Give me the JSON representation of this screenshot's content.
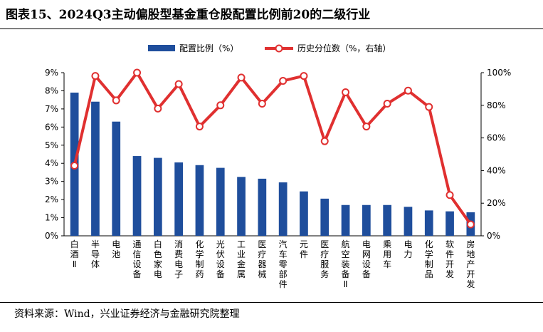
{
  "title": "图表15、2024Q3主动偏股型基金重仓股配置比例前20的二级行业",
  "source": "资料来源：Wind，兴业证券经济与金融研究院整理",
  "chart_data": {
    "type": "bar+line",
    "categories": [
      "白酒Ⅱ",
      "半导体",
      "电池",
      "通信设备",
      "白色家电",
      "消费电子",
      "化学制药",
      "光伏设备",
      "工业金属",
      "医疗器械",
      "汽车零部件",
      "元件",
      "医疗服务",
      "航空装备Ⅱ",
      "电网设备",
      "乘用车",
      "电力",
      "化学制品",
      "软件开发",
      "房地产开发"
    ],
    "series": [
      {
        "name": "配置比例（%）",
        "type": "bar",
        "axis": "left",
        "color": "#1f4e9c",
        "values": [
          7.9,
          7.4,
          6.3,
          4.4,
          4.3,
          4.05,
          3.9,
          3.75,
          3.25,
          3.15,
          2.95,
          2.45,
          2.05,
          1.7,
          1.7,
          1.7,
          1.6,
          1.4,
          1.35,
          1.3
        ]
      },
      {
        "name": "历史分位数（%，右轴）",
        "type": "line",
        "axis": "right",
        "color": "#e03030",
        "values": [
          43,
          98,
          83,
          100,
          78,
          93,
          67,
          80,
          97,
          81,
          95,
          98,
          58,
          88,
          67,
          81,
          89,
          79,
          25,
          7
        ]
      }
    ],
    "left_axis": {
      "min": 0,
      "max": 9,
      "ticks": [
        "0%",
        "1%",
        "2%",
        "3%",
        "4%",
        "5%",
        "6%",
        "7%",
        "8%",
        "9%"
      ]
    },
    "right_axis": {
      "min": 0,
      "max": 100,
      "ticks": [
        "0%",
        "20%",
        "40%",
        "60%",
        "80%",
        "100%"
      ]
    },
    "legend_position": "top-center"
  }
}
